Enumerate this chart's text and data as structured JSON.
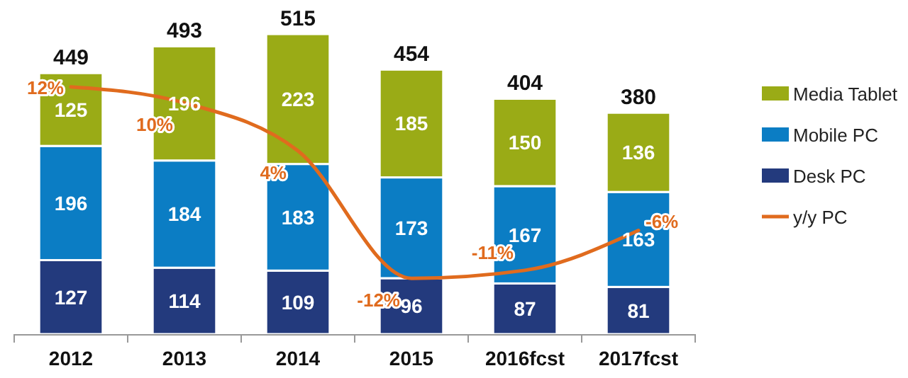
{
  "chart_data": {
    "type": "bar",
    "stacked": true,
    "categories": [
      "2012",
      "2013",
      "2014",
      "2015",
      "2016fcst",
      "2017fcst"
    ],
    "series": [
      {
        "name": "Desk PC",
        "color": "#233a7d",
        "values": [
          127,
          114,
          109,
          96,
          87,
          81
        ]
      },
      {
        "name": "Mobile PC",
        "color": "#0b7dc4",
        "values": [
          196,
          184,
          183,
          173,
          167,
          163
        ]
      },
      {
        "name": "Media Tablet",
        "color": "#9aab16",
        "values": [
          125,
          196,
          223,
          185,
          150,
          136
        ]
      },
      {
        "name": "y/y PC",
        "type": "line",
        "axis": "y2",
        "color": "#e06b1e",
        "values": [
          12,
          10,
          4,
          -12,
          -11,
          -6
        ],
        "value_labels": [
          "12%",
          "10%",
          "4%",
          "-12%",
          "-11%",
          "-6%"
        ]
      }
    ],
    "totals": [
      "449",
      "493",
      "515",
      "454",
      "404",
      "380"
    ],
    "data_labels": true,
    "ylim": [
      0,
      520
    ],
    "y2lim": [
      -19,
      19
    ],
    "tick_labels": "x",
    "legend": "right",
    "marker": "none",
    "line_style": "solid"
  }
}
